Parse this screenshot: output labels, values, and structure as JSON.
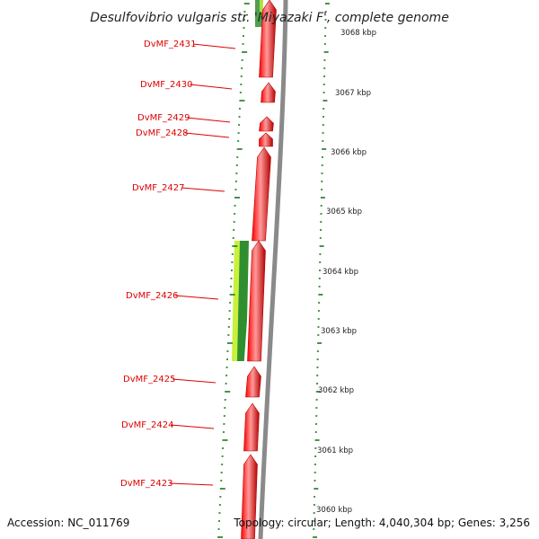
{
  "map": {
    "title": "Desulfovibrio vulgaris str. 'Miyazaki F', complete genome",
    "accession_text": "Accession: NC_011769",
    "topology_text": "Topology: circular; Length: 4,040,304 bp; Genes: 3,256"
  },
  "colors": {
    "gene_fill": "#ff0000",
    "gene_shade": "#b40000",
    "gene_highlight": "#ff9a9a",
    "backbone": "#8a8a8a",
    "ticks": "#1a7a1a",
    "label_red": "#dd0000",
    "gc_light": "#c8f03c",
    "gc_dark": "#2f8f2f"
  },
  "genes": [
    {
      "id": "DvMF_2431",
      "label": "DvMF_2431"
    },
    {
      "id": "DvMF_2430",
      "label": "DvMF_2430"
    },
    {
      "id": "DvMF_2429",
      "label": "DvMF_2429"
    },
    {
      "id": "DvMF_2428",
      "label": "DvMF_2428"
    },
    {
      "id": "DvMF_2427",
      "label": "DvMF_2427"
    },
    {
      "id": "DvMF_2426",
      "label": "DvMF_2426"
    },
    {
      "id": "DvMF_2425",
      "label": "DvMF_2425"
    },
    {
      "id": "DvMF_2424",
      "label": "DvMF_2424"
    },
    {
      "id": "DvMF_2423",
      "label": "DvMF_2423"
    }
  ],
  "scale": {
    "unit": "kbp",
    "ticks": [
      "3068 kbp",
      "3067 kbp",
      "3066 kbp",
      "3065 kbp",
      "3064 kbp",
      "3063 kbp",
      "3062 kbp",
      "3061 kbp",
      "3060 kbp"
    ]
  }
}
